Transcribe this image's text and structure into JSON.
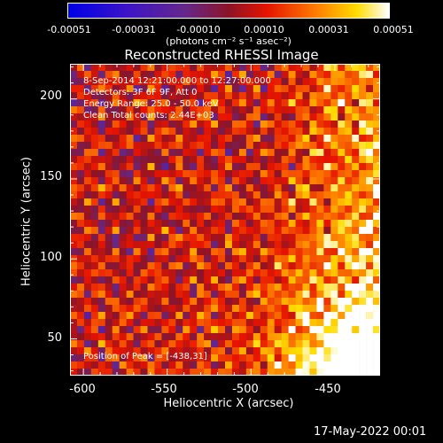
{
  "colorbar": {
    "tick_labels": [
      "-0.00051",
      "-0.00031",
      "-0.00010",
      "0.00010",
      "0.00031",
      "0.00051"
    ],
    "units": "(photons cm⁻² s⁻¹ asec⁻²)",
    "range": [
      -0.00051,
      0.00051
    ]
  },
  "title": "Reconstructed RHESSI Image",
  "info": {
    "time": "8-Sep-2014 12:21:00.000 to 12:27:00.000",
    "detectors": "Detectors: 3F 6F 9F, Att 0",
    "energy": "Energy Range: 25.0 - 50.0 keV",
    "clean": "Clean    Total counts: 2.44E+03"
  },
  "peak_text": "Position of Peak = [-438,31]",
  "datestamp": "17-May-2022 00:01",
  "chart_data": {
    "type": "heatmap",
    "title": "Reconstructed RHESSI Image",
    "xlabel": "Heliocentric X (arcsec)",
    "ylabel": "Heliocentric Y (arcsec)",
    "xlim": [
      -608,
      -423
    ],
    "ylim": [
      27,
      222
    ],
    "xticks": [
      -600,
      -550,
      -500,
      -450
    ],
    "yticks": [
      50,
      100,
      150,
      200
    ],
    "peak": [
      -438,
      31
    ],
    "colormap": "blue-purple-red-yellow-white"
  }
}
